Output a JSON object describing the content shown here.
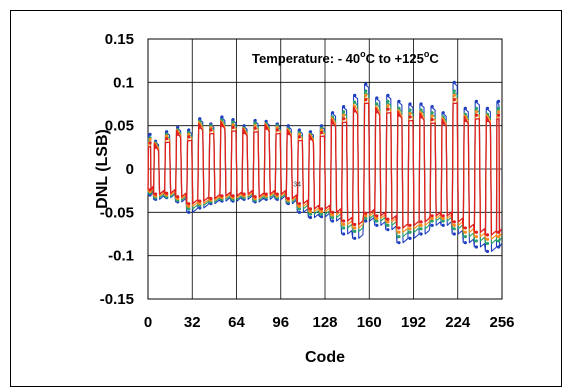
{
  "chart_data": {
    "type": "line",
    "xlabel": "Code",
    "ylabel": "DNL (LSB)",
    "annotation": {
      "prefix": "Temperature: - 40",
      "sup1": "o",
      "mid": "C to +125",
      "sup2": "o",
      "suffix": "C"
    },
    "marker_label": "34",
    "marker_point": {
      "x": 105,
      "y": -0.02
    },
    "xlim": [
      0,
      256
    ],
    "ylim": [
      -0.15,
      0.15
    ],
    "xticks": [
      0,
      32,
      64,
      96,
      128,
      160,
      192,
      224,
      256
    ],
    "xtick_labels": [
      "0",
      "32",
      "64",
      "96",
      "128",
      "160",
      "192",
      "224",
      "256"
    ],
    "yticks": [
      0.15,
      0.1,
      0.05,
      0,
      -0.05,
      -0.1,
      -0.15
    ],
    "ytick_labels": [
      "0.15",
      "0.1",
      "0.05",
      "0",
      "-0.05",
      "-0.1",
      "-0.15"
    ],
    "grid": true,
    "colors": {
      "blue": "#1f3fbf",
      "green": "#2aa06a",
      "orange": "#ff8a1a",
      "red": "#e02020"
    },
    "series": [
      {
        "color_key": "blue",
        "x": [
          0,
          4,
          12,
          20,
          28,
          36,
          44,
          52,
          60,
          68,
          76,
          84,
          92,
          100,
          108,
          116,
          124,
          132,
          140,
          148,
          156,
          164,
          172,
          180,
          188,
          196,
          204,
          212,
          220,
          228,
          236,
          244,
          252
        ],
        "y_high": [
          0.04,
          0.032,
          0.043,
          0.048,
          0.045,
          0.058,
          0.052,
          0.06,
          0.057,
          0.05,
          0.056,
          0.055,
          0.052,
          0.05,
          0.045,
          0.043,
          0.05,
          0.065,
          0.072,
          0.085,
          0.098,
          0.082,
          0.085,
          0.078,
          0.075,
          0.075,
          0.072,
          0.065,
          0.1,
          0.07,
          0.078,
          0.07,
          0.078
        ],
        "y_low": [
          -0.03,
          -0.035,
          -0.033,
          -0.038,
          -0.05,
          -0.045,
          -0.04,
          -0.037,
          -0.037,
          -0.035,
          -0.038,
          -0.035,
          -0.035,
          -0.04,
          -0.05,
          -0.056,
          -0.055,
          -0.06,
          -0.075,
          -0.08,
          -0.06,
          -0.065,
          -0.07,
          -0.085,
          -0.08,
          -0.075,
          -0.065,
          -0.065,
          -0.075,
          -0.085,
          -0.09,
          -0.095,
          -0.09
        ]
      },
      {
        "color_key": "green",
        "x": [
          0,
          4,
          12,
          20,
          28,
          36,
          44,
          52,
          60,
          68,
          76,
          84,
          92,
          100,
          108,
          116,
          124,
          132,
          140,
          148,
          156,
          164,
          172,
          180,
          188,
          196,
          204,
          212,
          220,
          228,
          236,
          244,
          252
        ],
        "y_high": [
          0.036,
          0.03,
          0.04,
          0.045,
          0.042,
          0.055,
          0.05,
          0.056,
          0.054,
          0.047,
          0.053,
          0.052,
          0.05,
          0.046,
          0.042,
          0.04,
          0.047,
          0.06,
          0.066,
          0.077,
          0.09,
          0.075,
          0.078,
          0.07,
          0.068,
          0.068,
          0.065,
          0.06,
          0.09,
          0.063,
          0.07,
          0.063,
          0.07
        ],
        "y_low": [
          -0.028,
          -0.033,
          -0.032,
          -0.036,
          -0.046,
          -0.042,
          -0.038,
          -0.035,
          -0.035,
          -0.033,
          -0.036,
          -0.033,
          -0.033,
          -0.038,
          -0.046,
          -0.052,
          -0.052,
          -0.056,
          -0.068,
          -0.072,
          -0.057,
          -0.06,
          -0.065,
          -0.078,
          -0.073,
          -0.069,
          -0.06,
          -0.06,
          -0.069,
          -0.078,
          -0.083,
          -0.086,
          -0.083
        ]
      },
      {
        "color_key": "orange",
        "x": [
          0,
          4,
          12,
          20,
          28,
          36,
          44,
          52,
          60,
          68,
          76,
          84,
          92,
          100,
          108,
          116,
          124,
          132,
          140,
          148,
          156,
          164,
          172,
          180,
          188,
          196,
          204,
          212,
          220,
          228,
          236,
          244,
          252
        ],
        "y_high": [
          0.034,
          0.028,
          0.038,
          0.043,
          0.04,
          0.052,
          0.048,
          0.053,
          0.051,
          0.045,
          0.05,
          0.05,
          0.048,
          0.044,
          0.04,
          0.038,
          0.045,
          0.057,
          0.062,
          0.072,
          0.085,
          0.07,
          0.073,
          0.066,
          0.064,
          0.064,
          0.061,
          0.057,
          0.085,
          0.06,
          0.066,
          0.06,
          0.066
        ],
        "y_low": [
          -0.026,
          -0.031,
          -0.03,
          -0.034,
          -0.043,
          -0.04,
          -0.036,
          -0.033,
          -0.033,
          -0.031,
          -0.034,
          -0.031,
          -0.031,
          -0.036,
          -0.043,
          -0.049,
          -0.049,
          -0.053,
          -0.064,
          -0.068,
          -0.054,
          -0.057,
          -0.061,
          -0.073,
          -0.069,
          -0.065,
          -0.057,
          -0.057,
          -0.065,
          -0.073,
          -0.078,
          -0.081,
          -0.078
        ]
      },
      {
        "color_key": "red",
        "x": [
          0,
          4,
          12,
          20,
          28,
          36,
          44,
          52,
          60,
          68,
          76,
          84,
          92,
          100,
          108,
          116,
          124,
          132,
          140,
          148,
          156,
          164,
          172,
          180,
          188,
          196,
          204,
          212,
          220,
          228,
          236,
          244,
          252
        ],
        "y_high": [
          0.03,
          0.025,
          0.035,
          0.04,
          0.037,
          0.048,
          0.045,
          0.05,
          0.048,
          0.042,
          0.047,
          0.047,
          0.045,
          0.041,
          0.037,
          0.035,
          0.042,
          0.053,
          0.058,
          0.067,
          0.08,
          0.066,
          0.069,
          0.062,
          0.06,
          0.06,
          0.057,
          0.053,
          0.08,
          0.056,
          0.062,
          0.056,
          0.062
        ],
        "y_low": [
          -0.024,
          -0.029,
          -0.028,
          -0.032,
          -0.04,
          -0.037,
          -0.034,
          -0.031,
          -0.031,
          -0.029,
          -0.032,
          -0.029,
          -0.029,
          -0.034,
          -0.04,
          -0.046,
          -0.046,
          -0.05,
          -0.06,
          -0.064,
          -0.051,
          -0.054,
          -0.058,
          -0.068,
          -0.065,
          -0.061,
          -0.054,
          -0.054,
          -0.061,
          -0.068,
          -0.073,
          -0.076,
          -0.073
        ]
      }
    ]
  }
}
